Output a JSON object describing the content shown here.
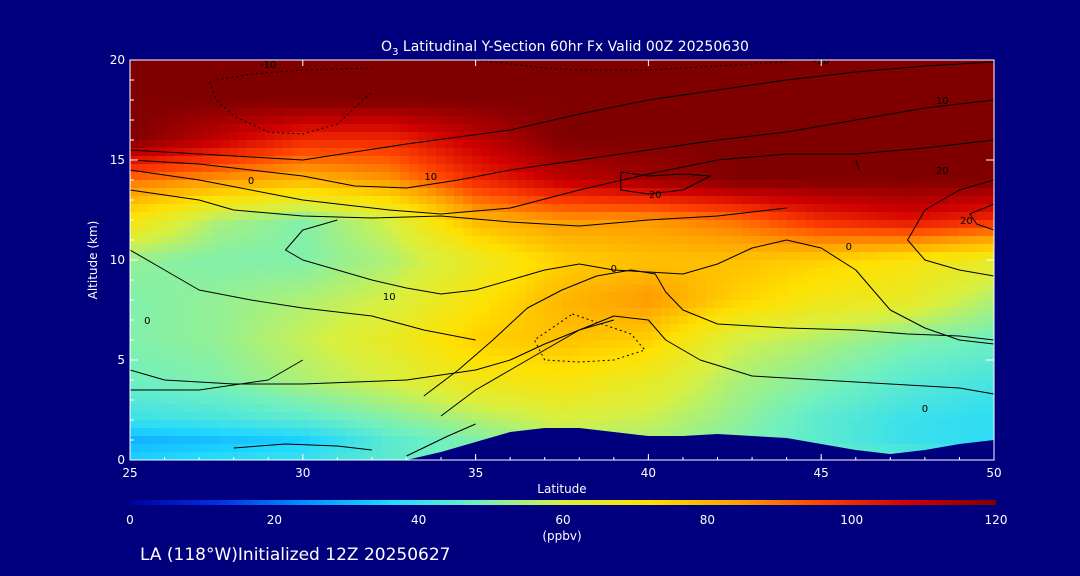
{
  "colors": {
    "background": "#00007f",
    "text": "#ffffff",
    "terrain": "#00007f",
    "contour": "#000000",
    "colormap": [
      "#0000a0",
      "#0030e0",
      "#0090ff",
      "#20d8ff",
      "#70f0c0",
      "#d8f040",
      "#ffe000",
      "#ffa000",
      "#ff4000",
      "#d00000",
      "#800000"
    ]
  },
  "footer": {
    "text": "LA (118°W)Initialized 12Z 20250627"
  },
  "chart_data": {
    "type": "heatmap",
    "title_prefix": "O",
    "title_subscript": "3",
    "title_rest": " Latitudinal Y-Section 60hr  Fx Valid 00Z 20250630",
    "xlabel": "Latitude",
    "ylabel": "Altitude (km)",
    "xlim": [
      25,
      50
    ],
    "ylim": [
      0,
      20
    ],
    "x_ticks": [
      "25",
      "30",
      "35",
      "40",
      "45",
      "50"
    ],
    "y_ticks": [
      "0",
      "5",
      "10",
      "15",
      "20"
    ],
    "colorbar": {
      "label": "(ppbv)",
      "range": [
        0,
        120
      ],
      "ticks": [
        "0",
        "20",
        "40",
        "60",
        "80",
        "100",
        "120"
      ]
    },
    "grid_lat": [
      25,
      27.5,
      30,
      32.5,
      35,
      37.5,
      40,
      42.5,
      45,
      47.5,
      50
    ],
    "grid_alt": [
      0,
      1,
      2,
      4,
      6,
      8,
      10,
      12,
      14,
      16,
      18,
      20
    ],
    "ozone_ppbv": [
      [
        35,
        38,
        40,
        45,
        50,
        52,
        55,
        52,
        48,
        45,
        42
      ],
      [
        30,
        32,
        35,
        45,
        50,
        55,
        55,
        50,
        45,
        40,
        38
      ],
      [
        40,
        42,
        45,
        50,
        55,
        60,
        58,
        52,
        45,
        40,
        38
      ],
      [
        48,
        50,
        55,
        60,
        68,
        70,
        65,
        55,
        50,
        45,
        42
      ],
      [
        50,
        52,
        58,
        65,
        75,
        78,
        75,
        60,
        55,
        50,
        48
      ],
      [
        50,
        52,
        55,
        60,
        70,
        80,
        85,
        75,
        68,
        65,
        55
      ],
      [
        52,
        50,
        50,
        55,
        65,
        75,
        78,
        78,
        75,
        70,
        65
      ],
      [
        70,
        55,
        50,
        60,
        80,
        85,
        85,
        90,
        100,
        105,
        100
      ],
      [
        90,
        85,
        80,
        85,
        100,
        110,
        115,
        120,
        120,
        120,
        120
      ],
      [
        120,
        110,
        100,
        100,
        110,
        120,
        120,
        120,
        120,
        120,
        120
      ],
      [
        120,
        120,
        120,
        120,
        120,
        120,
        120,
        120,
        120,
        120,
        120
      ],
      [
        120,
        120,
        120,
        120,
        120,
        120,
        120,
        120,
        120,
        120,
        120
      ]
    ],
    "terrain": {
      "lat": [
        25,
        33,
        34,
        35,
        36,
        37,
        38,
        39,
        40,
        41,
        42,
        43,
        44,
        45,
        46,
        47,
        48,
        49,
        50
      ],
      "alt_km": [
        0,
        0,
        0.4,
        0.9,
        1.4,
        1.6,
        1.6,
        1.4,
        1.2,
        1.2,
        1.3,
        1.2,
        1.1,
        0.8,
        0.5,
        0.3,
        0.5,
        0.8,
        1.0
      ]
    },
    "contours": [
      {
        "style": "solid",
        "points": [
          [
            25,
            15
          ],
          [
            27,
            14.8
          ],
          [
            30,
            14.2
          ],
          [
            31.5,
            13.7
          ],
          [
            33,
            13.6
          ],
          [
            34.5,
            14
          ],
          [
            36,
            14.5
          ],
          [
            38,
            15
          ],
          [
            40,
            15.5
          ],
          [
            42,
            16
          ],
          [
            44,
            16.4
          ],
          [
            46,
            17
          ],
          [
            48,
            17.6
          ],
          [
            50,
            18
          ]
        ]
      },
      {
        "style": "solid",
        "points": [
          [
            25,
            15.5
          ],
          [
            27,
            15.3
          ],
          [
            30,
            15
          ],
          [
            33,
            15.8
          ],
          [
            36,
            16.5
          ],
          [
            38,
            17.3
          ],
          [
            40,
            18
          ],
          [
            42,
            18.5
          ],
          [
            44,
            19
          ],
          [
            46,
            19.4
          ],
          [
            48,
            19.7
          ],
          [
            50,
            19.9
          ]
        ]
      },
      {
        "style": "solid",
        "points": [
          [
            25,
            14.5
          ],
          [
            27,
            14
          ],
          [
            30,
            13
          ],
          [
            32.5,
            12.5
          ],
          [
            34,
            12.3
          ],
          [
            36,
            12.6
          ],
          [
            38,
            13.5
          ],
          [
            40,
            14.3
          ],
          [
            42,
            15
          ],
          [
            44,
            15.3
          ],
          [
            46,
            15.3
          ],
          [
            48,
            15.6
          ],
          [
            50,
            16
          ]
        ]
      },
      {
        "style": "solid",
        "points": [
          [
            25,
            13.5
          ],
          [
            27,
            13
          ],
          [
            28,
            12.5
          ],
          [
            30,
            12.2
          ],
          [
            32,
            12.1
          ],
          [
            34,
            12.2
          ],
          [
            36,
            11.9
          ],
          [
            38,
            11.7
          ],
          [
            40,
            12
          ],
          [
            42,
            12.2
          ],
          [
            44,
            12.6
          ]
        ]
      },
      {
        "style": "solid",
        "points": [
          [
            25,
            10.5
          ],
          [
            26,
            9.5
          ],
          [
            27,
            8.5
          ],
          [
            28.5,
            8
          ],
          [
            30,
            7.6
          ],
          [
            32,
            7.2
          ],
          [
            33.5,
            6.5
          ],
          [
            35,
            6
          ]
        ]
      },
      {
        "style": "solid",
        "points": [
          [
            25,
            4.5
          ],
          [
            26,
            4
          ],
          [
            28,
            3.8
          ],
          [
            30,
            3.8
          ],
          [
            33,
            4
          ],
          [
            35,
            4.5
          ],
          [
            36,
            5
          ],
          [
            37,
            5.8
          ],
          [
            38,
            6.5
          ],
          [
            39,
            7
          ]
        ]
      },
      {
        "style": "solid",
        "points": [
          [
            25,
            3.5
          ],
          [
            27,
            3.5
          ],
          [
            29,
            4
          ],
          [
            30,
            5
          ]
        ]
      },
      {
        "style": "solid",
        "points": [
          [
            30,
            10
          ],
          [
            31,
            9.5
          ],
          [
            32,
            9
          ],
          [
            33,
            8.6
          ],
          [
            34,
            8.3
          ],
          [
            35,
            8.5
          ],
          [
            36,
            9
          ],
          [
            37,
            9.5
          ],
          [
            38,
            9.8
          ],
          [
            39,
            9.5
          ],
          [
            40,
            9.4
          ],
          [
            41,
            9.3
          ],
          [
            42,
            9.8
          ],
          [
            43,
            10.6
          ],
          [
            44,
            11
          ],
          [
            45,
            10.6
          ],
          [
            46,
            9.5
          ],
          [
            46.5,
            8.5
          ],
          [
            47,
            7.5
          ],
          [
            48,
            6.6
          ],
          [
            49,
            6
          ],
          [
            50,
            5.8
          ]
        ]
      },
      {
        "style": "solid",
        "points": [
          [
            31,
            12
          ],
          [
            30,
            11.5
          ],
          [
            29.5,
            10.5
          ],
          [
            30,
            10
          ]
        ]
      },
      {
        "style": "solid",
        "points": [
          [
            33.5,
            3.2
          ],
          [
            34.5,
            4.5
          ],
          [
            35.5,
            6
          ],
          [
            36.5,
            7.6
          ],
          [
            37.5,
            8.5
          ],
          [
            38.5,
            9.2
          ],
          [
            39.5,
            9.5
          ],
          [
            40.2,
            9.3
          ],
          [
            40.5,
            8.4
          ],
          [
            41,
            7.5
          ],
          [
            42,
            6.8
          ],
          [
            44,
            6.6
          ],
          [
            46,
            6.5
          ],
          [
            47.5,
            6.3
          ],
          [
            49,
            6.2
          ],
          [
            50,
            6
          ]
        ]
      },
      {
        "style": "solid",
        "points": [
          [
            34,
            2.2
          ],
          [
            35,
            3.5
          ],
          [
            36,
            4.5
          ],
          [
            37,
            5.5
          ],
          [
            38,
            6.5
          ],
          [
            39,
            7.2
          ],
          [
            40,
            7
          ],
          [
            40.5,
            6
          ],
          [
            41.5,
            5
          ],
          [
            43,
            4.2
          ],
          [
            45,
            4
          ],
          [
            47,
            3.8
          ],
          [
            49,
            3.6
          ],
          [
            50,
            3.3
          ]
        ]
      },
      {
        "style": "solid",
        "points": [
          [
            33,
            0.2
          ],
          [
            34.2,
            1.2
          ],
          [
            35,
            1.8
          ]
        ]
      },
      {
        "style": "solid",
        "points": [
          [
            28,
            0.6
          ],
          [
            29.5,
            0.8
          ],
          [
            31,
            0.7
          ],
          [
            32,
            0.5
          ]
        ]
      },
      {
        "style": "solid",
        "points": [
          [
            39.2,
            14.4
          ],
          [
            40,
            14.2
          ],
          [
            41,
            14.3
          ],
          [
            41.8,
            14.2
          ],
          [
            41,
            13.5
          ],
          [
            40,
            13.3
          ],
          [
            39.2,
            13.5
          ],
          [
            39.2,
            14.4
          ]
        ]
      },
      {
        "style": "solid",
        "points": [
          [
            46,
            15
          ],
          [
            46.1,
            14.5
          ]
        ]
      },
      {
        "style": "solid",
        "points": [
          [
            50,
            14
          ],
          [
            49,
            13.5
          ],
          [
            48,
            12.5
          ],
          [
            47.5,
            11
          ],
          [
            48,
            10
          ],
          [
            49,
            9.5
          ],
          [
            50,
            9.2
          ]
        ]
      },
      {
        "style": "solid",
        "points": [
          [
            50,
            12.8
          ],
          [
            49.3,
            12.3
          ],
          [
            49.5,
            11.8
          ],
          [
            50,
            11.5
          ]
        ]
      },
      {
        "style": "dotted",
        "points": [
          [
            35,
            20
          ],
          [
            37,
            19.6
          ],
          [
            38,
            19.5
          ],
          [
            40,
            19.5
          ],
          [
            42,
            19.7
          ],
          [
            44,
            19.9
          ]
        ]
      },
      {
        "style": "dotted",
        "points": [
          [
            27.5,
            19
          ],
          [
            28.5,
            19.3
          ],
          [
            30,
            19.5
          ],
          [
            32,
            19.6
          ]
        ]
      },
      {
        "style": "dotted",
        "points": [
          [
            27.3,
            18.9
          ],
          [
            27.5,
            18
          ],
          [
            28,
            17.2
          ],
          [
            29,
            16.4
          ],
          [
            30,
            16.3
          ],
          [
            31,
            16.8
          ],
          [
            32,
            18.4
          ]
        ]
      },
      {
        "style": "dotted",
        "points": [
          [
            37.8,
            7.3
          ],
          [
            39.5,
            6.3
          ],
          [
            39.9,
            5.5
          ],
          [
            39,
            5
          ],
          [
            38,
            4.9
          ],
          [
            37,
            5
          ],
          [
            36.7,
            6
          ],
          [
            37.8,
            7.3
          ]
        ]
      }
    ],
    "contour_labels": [
      {
        "text": "-10",
        "lat": 29,
        "alt": 19.8
      },
      {
        "text": "0",
        "lat": 28.5,
        "alt": 14
      },
      {
        "text": "10",
        "lat": 33.7,
        "alt": 14.2
      },
      {
        "text": "20",
        "lat": 40.2,
        "alt": 13.3
      },
      {
        "text": "0",
        "lat": 39,
        "alt": 9.6
      },
      {
        "text": "10",
        "lat": 32.5,
        "alt": 8.2
      },
      {
        "text": "0",
        "lat": 25.5,
        "alt": 7
      },
      {
        "text": "-10",
        "lat": 45,
        "alt": 20
      },
      {
        "text": "10",
        "lat": 48.5,
        "alt": 18
      },
      {
        "text": "20",
        "lat": 48.5,
        "alt": 14.5
      },
      {
        "text": "20",
        "lat": 49.2,
        "alt": 12
      },
      {
        "text": "0",
        "lat": 45.8,
        "alt": 10.7
      },
      {
        "text": "0",
        "lat": 48,
        "alt": 2.6
      }
    ]
  }
}
